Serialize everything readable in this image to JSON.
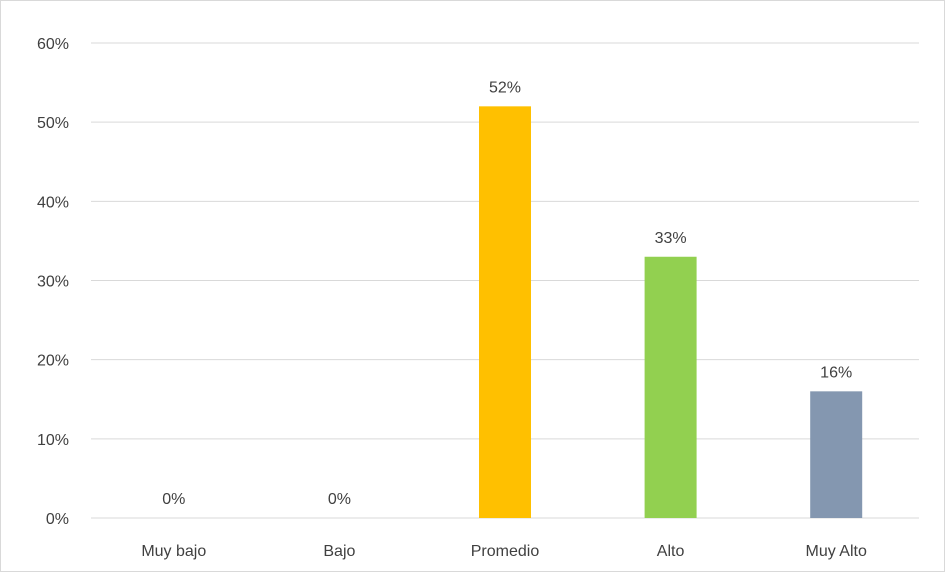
{
  "chart_data": {
    "type": "bar",
    "title": "",
    "xlabel": "",
    "ylabel": "",
    "categories": [
      "Muy bajo",
      "Bajo",
      "Promedio",
      "Alto",
      "Muy Alto"
    ],
    "values": [
      0,
      0,
      52,
      33,
      16
    ],
    "data_labels": [
      "0%",
      "0%",
      "52%",
      "33%",
      "16%"
    ],
    "colors": [
      "#4472c4",
      "#4472c4",
      "#ffc000",
      "#92d050",
      "#8497b0"
    ],
    "ylim": [
      0,
      60
    ],
    "yticks": [
      0,
      10,
      20,
      30,
      40,
      50,
      60
    ],
    "ytick_labels": [
      "0%",
      "10%",
      "20%",
      "30%",
      "40%",
      "50%",
      "60%"
    ],
    "grid": true,
    "legend": "none",
    "gridline_color": "#d9d9d9",
    "axis_label_color": "#404040"
  }
}
